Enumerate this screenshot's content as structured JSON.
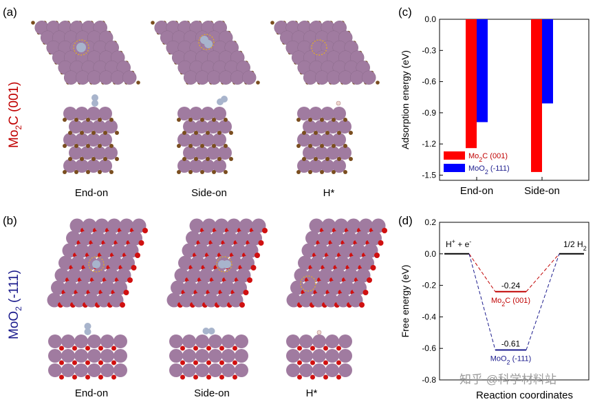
{
  "panel_a": {
    "letter": "(a)",
    "row_label_main": "Mo",
    "row_label_sub": "2",
    "row_label_rest": "C (001)",
    "captions": [
      "End-on",
      "Side-on",
      "H*"
    ],
    "colors": {
      "mo": "#a07ba0",
      "c": "#7a4e1f",
      "n": "#a8b4cc",
      "ring": "#e6b020",
      "label": "#c00000"
    }
  },
  "panel_b": {
    "letter": "(b)",
    "row_label_main": "MoO",
    "row_label_sub": "2",
    "row_label_rest": " (-111)",
    "captions": [
      "End-on",
      "Side-on",
      "H*"
    ],
    "colors": {
      "mo": "#a07ba0",
      "o": "#d01010",
      "label": "#1a1a8c"
    }
  },
  "chart_data": [
    {
      "panel": "(c)",
      "type": "bar",
      "categories": [
        "End-on",
        "Side-on"
      ],
      "series": [
        {
          "name": "Mo2C (001)",
          "label_main": "Mo",
          "label_sub": "2",
          "label_rest": "C (001)",
          "color": "#ff0000",
          "values": [
            -1.24,
            -1.47
          ]
        },
        {
          "name": "MoO2 (-111)",
          "label_main": "MoO",
          "label_sub": "2",
          "label_rest": " (-111)",
          "color": "#0000ff",
          "values": [
            -0.99,
            -0.81
          ]
        }
      ],
      "ylabel": "Adsorption energy (eV)",
      "ylim": [
        -1.55,
        0.0
      ],
      "yticks": [
        "0.0",
        "-0.3",
        "-0.6",
        "-0.9",
        "-1.2",
        "-1.5"
      ],
      "legend_position": "bottom-left",
      "grid": false
    },
    {
      "panel": "(d)",
      "type": "line",
      "xlabel": "Reaction coordinates",
      "ylabel": "Free energy (eV)",
      "ylim": [
        -0.8,
        0.2
      ],
      "yticks": [
        "0.2",
        "0.0",
        "-0.2",
        "-0.4",
        "-0.6",
        "-0.8"
      ],
      "states": [
        {
          "label_main": "H",
          "label_sup": "+",
          "label_rest": " + e",
          "label_sup2": "-",
          "value": 0.0
        },
        {
          "label_main": "1/2 H",
          "label_sub": "2",
          "value": 0.0
        }
      ],
      "series": [
        {
          "name": "Mo2C (001)",
          "label_main": "Mo",
          "label_sub": "2",
          "label_rest": "C (001)",
          "color": "#c00000",
          "value": -0.24,
          "value_label": "-0.24"
        },
        {
          "name": "MoO2 (-111)",
          "label_main": "MoO",
          "label_sub": "2",
          "label_rest": " (-111)",
          "color": "#1a1a8c",
          "value": -0.61,
          "value_label": "-0.61"
        }
      ]
    }
  ],
  "watermark": "知乎 @科学材料站"
}
